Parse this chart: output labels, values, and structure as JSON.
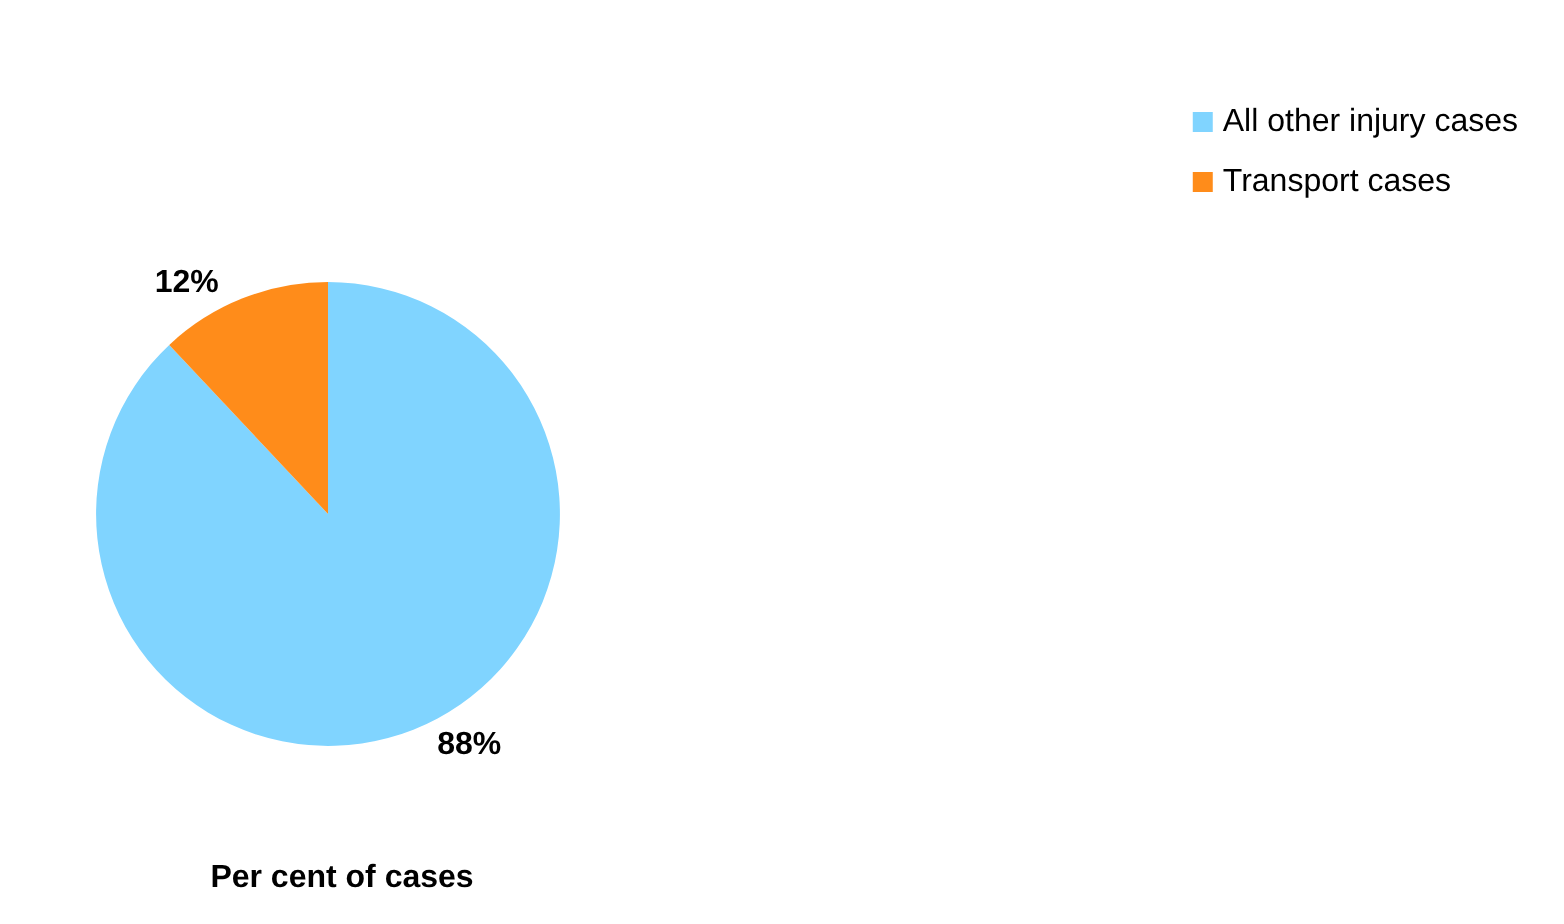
{
  "chart_data": {
    "type": "pie",
    "title": "Per cent of cases",
    "categories": [
      "All other injury cases",
      "Transport cases"
    ],
    "values": [
      88,
      12
    ],
    "colors": [
      "#80d4ff",
      "#ff8c1a"
    ],
    "value_labels": [
      "88%",
      "12%"
    ],
    "legend": "top right"
  }
}
